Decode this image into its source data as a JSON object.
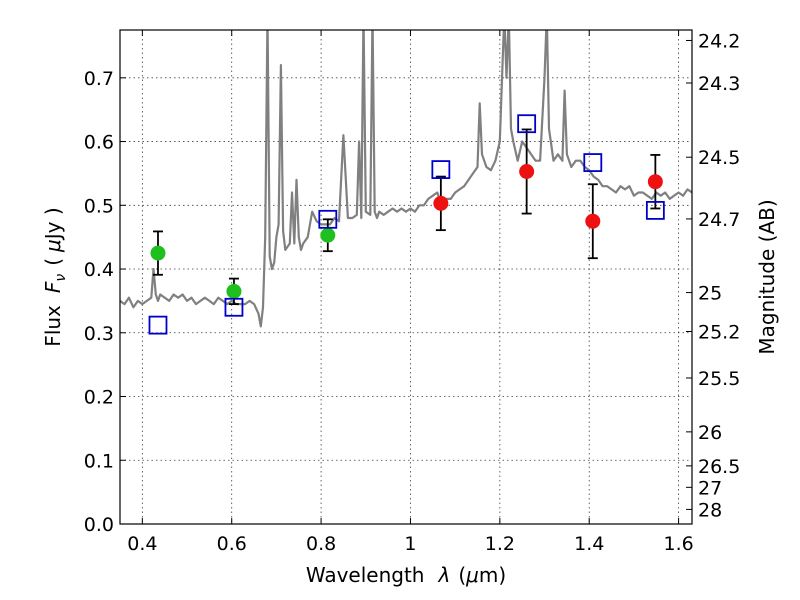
{
  "chart_data": {
    "type": "scatter",
    "xlabel_text": "Wavelength",
    "xlabel_symbol": "λ",
    "xlabel_unit_open": "(",
    "xlabel_unit_mu": "μ",
    "xlabel_unit_rest": "m)",
    "ylabel_text": "Flux",
    "ylabel_symbol": "F",
    "ylabel_sub": "ν",
    "ylabel_unit_open": "(",
    "ylabel_unit_mu": "μ",
    "ylabel_unit_rest": "Jy )",
    "y2label": "Magnitude (AB)",
    "xlim": [
      0.35,
      1.63
    ],
    "ylim": [
      0.0,
      0.775
    ],
    "grid": true,
    "x_ticks": [
      0.4,
      0.6,
      0.8,
      1.0,
      1.2,
      1.4,
      1.6
    ],
    "x_tick_labels": [
      "0.4",
      "0.6",
      "0.8",
      "1",
      "1.2",
      "1.4",
      "1.6"
    ],
    "y_ticks": [
      0.0,
      0.1,
      0.2,
      0.3,
      0.4,
      0.5,
      0.6,
      0.7
    ],
    "y_tick_labels": [
      "0.0",
      "0.1",
      "0.2",
      "0.3",
      "0.4",
      "0.5",
      "0.6",
      "0.7"
    ],
    "mag_ticks": [
      24.2,
      24.3,
      24.5,
      24.7,
      25,
      25.2,
      25.5,
      26,
      26.5,
      27,
      28
    ],
    "mag_tick_labels": [
      "24.2",
      "24.3",
      "24.5",
      "24.7",
      "25",
      "25.2",
      "25.5",
      "26",
      "26.5",
      "27",
      "28"
    ],
    "colors": {
      "model": "#808080",
      "green": "#1fbf1f",
      "red": "#ee1111",
      "square": "#0000cc",
      "error": "#000000"
    },
    "series": [
      {
        "name": "model spectrum",
        "kind": "line",
        "x": [
          0.35,
          0.36,
          0.37,
          0.38,
          0.39,
          0.4,
          0.41,
          0.42,
          0.425,
          0.43,
          0.435,
          0.44,
          0.45,
          0.46,
          0.47,
          0.48,
          0.49,
          0.5,
          0.51,
          0.52,
          0.53,
          0.54,
          0.55,
          0.56,
          0.57,
          0.58,
          0.59,
          0.6,
          0.61,
          0.62,
          0.63,
          0.64,
          0.65,
          0.66,
          0.665,
          0.67,
          0.675,
          0.68,
          0.685,
          0.69,
          0.695,
          0.7,
          0.705,
          0.71,
          0.715,
          0.72,
          0.73,
          0.735,
          0.74,
          0.745,
          0.75,
          0.755,
          0.76,
          0.77,
          0.78,
          0.79,
          0.8,
          0.81,
          0.82,
          0.83,
          0.84,
          0.85,
          0.86,
          0.87,
          0.88,
          0.885,
          0.89,
          0.895,
          0.9,
          0.91,
          0.915,
          0.92,
          0.925,
          0.93,
          0.94,
          0.95,
          0.96,
          0.97,
          0.98,
          0.99,
          1.0,
          1.01,
          1.02,
          1.03,
          1.04,
          1.05,
          1.06,
          1.07,
          1.08,
          1.09,
          1.1,
          1.11,
          1.12,
          1.13,
          1.14,
          1.15,
          1.155,
          1.16,
          1.17,
          1.18,
          1.19,
          1.2,
          1.21,
          1.215,
          1.22,
          1.225,
          1.23,
          1.24,
          1.25,
          1.26,
          1.27,
          1.28,
          1.29,
          1.3,
          1.305,
          1.31,
          1.32,
          1.33,
          1.34,
          1.345,
          1.35,
          1.36,
          1.37,
          1.38,
          1.39,
          1.4,
          1.41,
          1.42,
          1.43,
          1.44,
          1.45,
          1.46,
          1.47,
          1.48,
          1.49,
          1.5,
          1.51,
          1.52,
          1.53,
          1.54,
          1.55,
          1.56,
          1.57,
          1.58,
          1.59,
          1.6,
          1.61,
          1.62,
          1.63
        ],
        "y": [
          0.35,
          0.345,
          0.355,
          0.34,
          0.35,
          0.345,
          0.35,
          0.355,
          0.4,
          0.36,
          0.35,
          0.36,
          0.355,
          0.35,
          0.36,
          0.355,
          0.36,
          0.35,
          0.355,
          0.345,
          0.35,
          0.355,
          0.35,
          0.345,
          0.355,
          0.35,
          0.345,
          0.35,
          0.345,
          0.345,
          0.345,
          0.35,
          0.345,
          0.33,
          0.31,
          0.34,
          0.45,
          0.8,
          0.42,
          0.4,
          0.41,
          0.45,
          0.47,
          0.72,
          0.46,
          0.43,
          0.44,
          0.52,
          0.44,
          0.54,
          0.45,
          0.43,
          0.44,
          0.45,
          0.49,
          0.475,
          0.47,
          0.47,
          0.47,
          0.48,
          0.475,
          0.61,
          0.48,
          0.48,
          0.485,
          0.6,
          0.48,
          0.8,
          0.49,
          0.485,
          0.8,
          0.49,
          0.48,
          0.49,
          0.485,
          0.49,
          0.495,
          0.49,
          0.495,
          0.49,
          0.495,
          0.49,
          0.5,
          0.5,
          0.51,
          0.515,
          0.52,
          0.5,
          0.51,
          0.51,
          0.52,
          0.525,
          0.53,
          0.54,
          0.55,
          0.56,
          0.66,
          0.58,
          0.56,
          0.555,
          0.57,
          0.6,
          0.8,
          0.7,
          0.8,
          0.62,
          0.6,
          0.57,
          0.6,
          0.59,
          0.58,
          0.57,
          0.57,
          0.7,
          0.8,
          0.62,
          0.57,
          0.58,
          0.57,
          0.68,
          0.58,
          0.56,
          0.57,
          0.57,
          0.56,
          0.555,
          0.545,
          0.54,
          0.53,
          0.53,
          0.525,
          0.52,
          0.53,
          0.525,
          0.53,
          0.515,
          0.52,
          0.52,
          0.515,
          0.51,
          0.52,
          0.515,
          0.52,
          0.51,
          0.515,
          0.52,
          0.515,
          0.525,
          0.52
        ]
      },
      {
        "name": "green points",
        "kind": "points",
        "x": [
          0.435,
          0.605,
          0.815
        ],
        "y": [
          0.425,
          0.365,
          0.453
        ],
        "err": [
          0.034,
          0.02,
          0.025
        ]
      },
      {
        "name": "red points",
        "kind": "points",
        "x": [
          1.068,
          1.26,
          1.408,
          1.548
        ],
        "y": [
          0.503,
          0.553,
          0.475,
          0.537
        ],
        "err": [
          0.042,
          0.066,
          0.058,
          0.042
        ]
      },
      {
        "name": "model photometry",
        "kind": "squares",
        "x": [
          0.435,
          0.605,
          0.815,
          1.068,
          1.26,
          1.408,
          1.548
        ],
        "y": [
          0.312,
          0.34,
          0.478,
          0.556,
          0.628,
          0.567,
          0.492
        ]
      }
    ]
  }
}
